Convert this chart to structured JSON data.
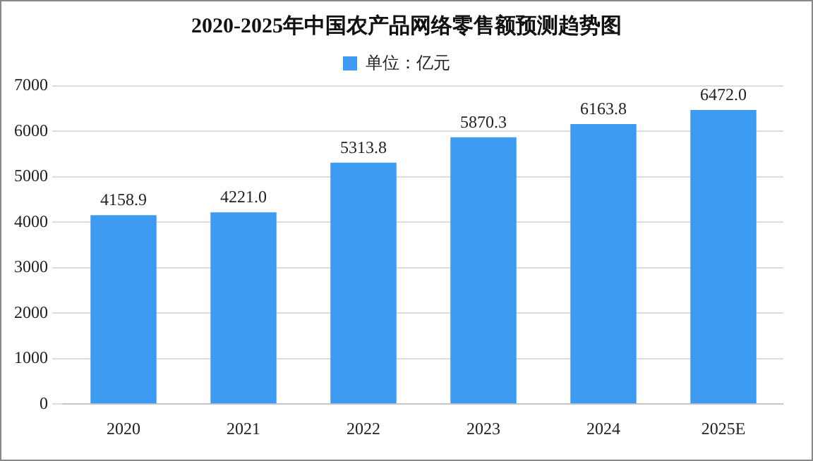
{
  "chart_data": {
    "type": "bar",
    "title": "2020-2025年中国农产品网络零售额预测趋势图",
    "categories": [
      "2020",
      "2021",
      "2022",
      "2023",
      "2024",
      "2025E"
    ],
    "series": [
      {
        "name": "单位：亿元",
        "color": "#3d9cf2",
        "values": [
          4158.9,
          4221,
          5313.8,
          5870.3,
          6163.8,
          6472
        ],
        "value_labels": [
          "4158.9",
          "4221.0",
          "5313.8",
          "5870.3",
          "6163.8",
          "6472.0"
        ]
      }
    ],
    "ylim": [
      0,
      7000
    ],
    "yticks": [
      0,
      1000,
      2000,
      3000,
      4000,
      5000,
      6000,
      7000
    ],
    "grid": "y",
    "legend": "top"
  }
}
